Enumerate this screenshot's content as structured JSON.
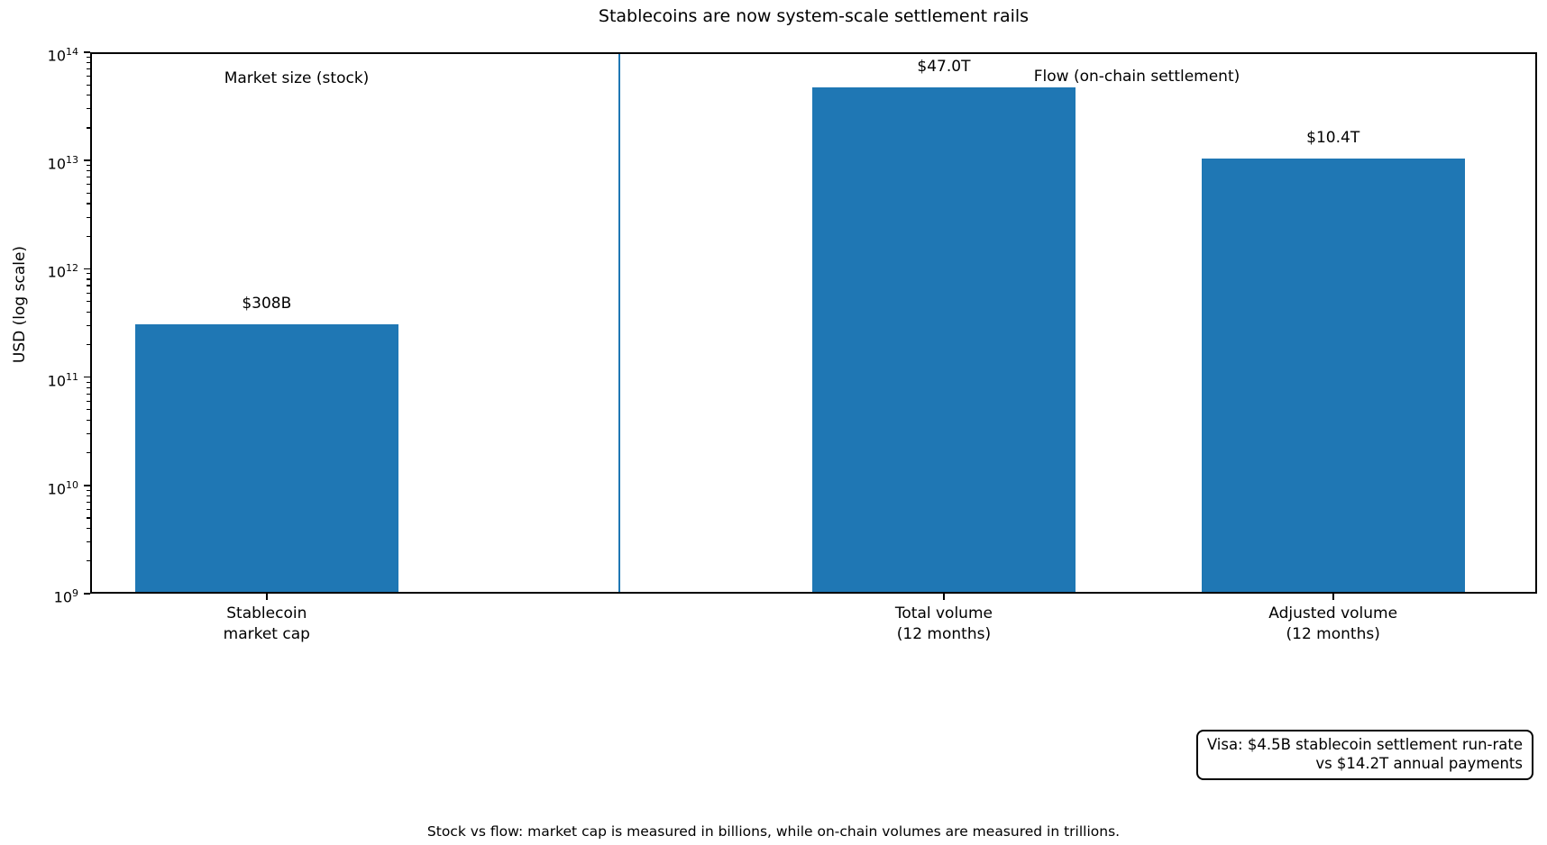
{
  "colors": {
    "bar": "#1f77b4",
    "divider": "#1f77b4",
    "axis": "#000000",
    "text": "#000000",
    "background": "#ffffff"
  },
  "annotation_box": {
    "line1": "Visa: $4.5B stablecoin settlement run-rate",
    "line2": "vs $14.2T annual payments"
  },
  "chart_data": {
    "type": "bar",
    "yscale": "log",
    "title": "Stablecoins are now system-scale settlement rails",
    "ylabel": "USD (log scale)",
    "xlabel": "",
    "ylim": [
      1000000000,
      100000000000000
    ],
    "y_tick_exponents": [
      9,
      10,
      11,
      12,
      13,
      14
    ],
    "categories": [
      "Stablecoin\nmarket cap",
      "Total volume\n(12 months)",
      "Adjusted volume\n(12 months)"
    ],
    "values": [
      308000000000,
      47000000000000,
      10400000000000
    ],
    "bar_labels": [
      "$308B",
      "$47.0T",
      "$10.4T"
    ],
    "section_labels": [
      "Market size (stock)",
      "Flow (on-chain settlement)"
    ],
    "divider_note": "vertical blue line separates stock section from flow section",
    "grid": false,
    "legend": "none",
    "annotation": "Visa: $4.5B stablecoin settlement run-rate vs $14.2T annual payments",
    "caption": "Stock vs flow: market cap is measured in billions, while on-chain volumes are measured in trillions."
  }
}
